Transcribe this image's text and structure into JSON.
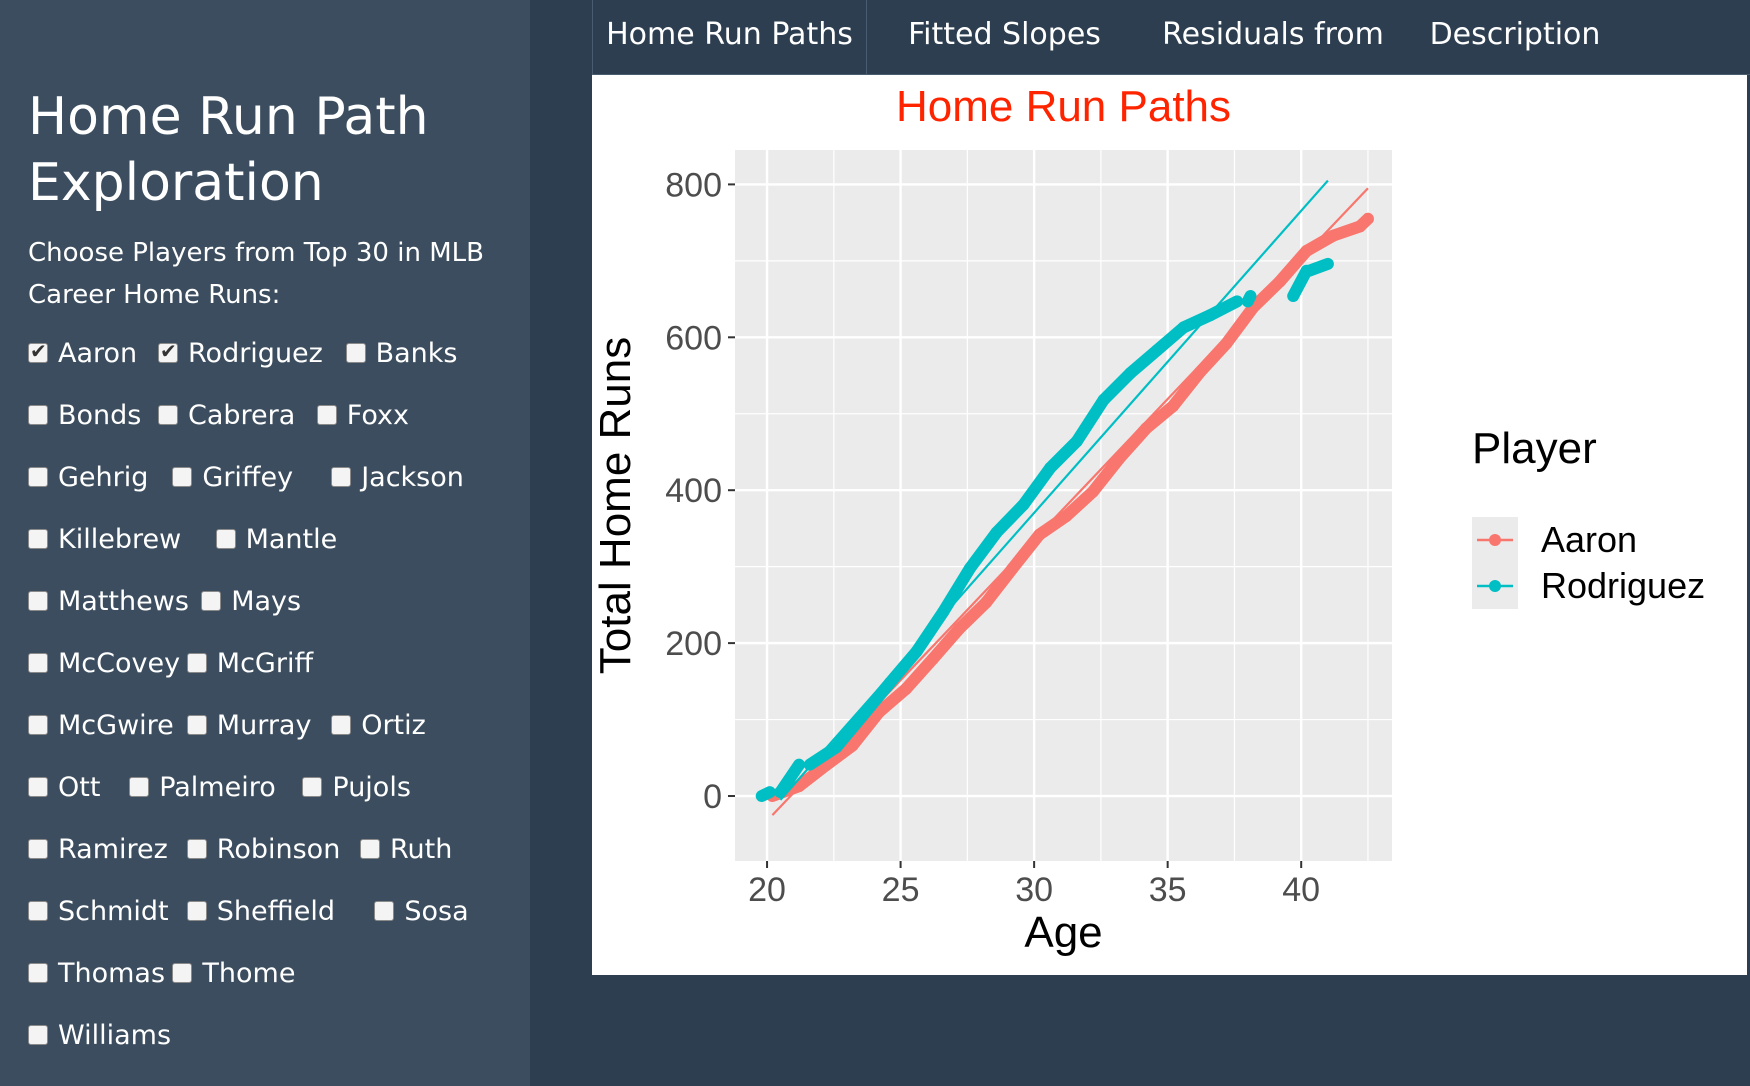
{
  "sidebar": {
    "title": "Home Run Path Exploration",
    "instructions": "Choose Players from Top 30 in MLB Career Home Runs:",
    "players": [
      {
        "label": "Aaron",
        "checked": true
      },
      {
        "label": "Rodriguez",
        "checked": true
      },
      {
        "label": "Banks",
        "checked": false
      },
      {
        "label": "Bonds",
        "checked": false
      },
      {
        "label": "Cabrera",
        "checked": false
      },
      {
        "label": "Foxx",
        "checked": false
      },
      {
        "label": "Gehrig",
        "checked": false
      },
      {
        "label": "Griffey",
        "checked": false
      },
      {
        "label": "Jackson",
        "checked": false
      },
      {
        "label": "Killebrew",
        "checked": false
      },
      {
        "label": "Mantle",
        "checked": false
      },
      {
        "label": "Matthews",
        "checked": false
      },
      {
        "label": "Mays",
        "checked": false
      },
      {
        "label": "McCovey",
        "checked": false
      },
      {
        "label": "McGriff",
        "checked": false
      },
      {
        "label": "McGwire",
        "checked": false
      },
      {
        "label": "Murray",
        "checked": false
      },
      {
        "label": "Ortiz",
        "checked": false
      },
      {
        "label": "Ott",
        "checked": false
      },
      {
        "label": "Palmeiro",
        "checked": false
      },
      {
        "label": "Pujols",
        "checked": false
      },
      {
        "label": "Ramirez",
        "checked": false
      },
      {
        "label": "Robinson",
        "checked": false
      },
      {
        "label": "Ruth",
        "checked": false
      },
      {
        "label": "Schmidt",
        "checked": false
      },
      {
        "label": "Sheffield",
        "checked": false
      },
      {
        "label": "Sosa",
        "checked": false
      },
      {
        "label": "Thomas",
        "checked": false
      },
      {
        "label": "Thome",
        "checked": false
      },
      {
        "label": "Williams",
        "checked": false
      }
    ]
  },
  "tabs": [
    {
      "label": "Home Run Paths",
      "active": true
    },
    {
      "label": "Fitted Slopes",
      "active": false
    },
    {
      "label": "Residuals from Fit",
      "active": false
    },
    {
      "label": "Description",
      "active": false
    }
  ],
  "colors": {
    "Aaron": "#F8766D",
    "Rodriguez": "#00BFC4",
    "title": "#FF2400",
    "panel_bg": "#EBEBEB",
    "sidebar_bg": "#3b4d5e",
    "page_bg": "#2c3e50"
  },
  "chart_data": {
    "type": "scatter",
    "title": "Home Run Paths",
    "xlabel": "Age",
    "ylabel": "Total Home Runs",
    "xlim": [
      18.8,
      43.4
    ],
    "ylim": [
      -85,
      845
    ],
    "xticks": [
      20,
      25,
      30,
      35,
      40
    ],
    "yticks": [
      0,
      200,
      400,
      600,
      800
    ],
    "legend": {
      "title": "Player",
      "position": "right",
      "entries": [
        "Aaron",
        "Rodriguez"
      ]
    },
    "grid": true,
    "series": [
      {
        "name": "Aaron",
        "fit_line": {
          "x": [
            20.2,
            42.5
          ],
          "y": [
            -25,
            795
          ]
        },
        "seasons": [
          {
            "x0": 20.2,
            "x1": 21.2,
            "y0": 0,
            "y1": 13
          },
          {
            "x0": 21.2,
            "x1": 22.2,
            "y0": 13,
            "y1": 40
          },
          {
            "x0": 22.2,
            "x1": 23.2,
            "y0": 40,
            "y1": 66
          },
          {
            "x0": 23.2,
            "x1": 24.2,
            "y0": 66,
            "y1": 110
          },
          {
            "x0": 24.2,
            "x1": 25.2,
            "y0": 110,
            "y1": 140
          },
          {
            "x0": 25.2,
            "x1": 26.2,
            "y0": 140,
            "y1": 179
          },
          {
            "x0": 26.2,
            "x1": 27.2,
            "y0": 179,
            "y1": 219
          },
          {
            "x0": 27.2,
            "x1": 28.2,
            "y0": 219,
            "y1": 253
          },
          {
            "x0": 28.2,
            "x1": 29.2,
            "y0": 253,
            "y1": 298
          },
          {
            "x0": 29.2,
            "x1": 30.2,
            "y0": 298,
            "y1": 342
          },
          {
            "x0": 30.2,
            "x1": 31.2,
            "y0": 342,
            "y1": 366
          },
          {
            "x0": 31.2,
            "x1": 32.2,
            "y0": 366,
            "y1": 398
          },
          {
            "x0": 32.2,
            "x1": 33.2,
            "y0": 398,
            "y1": 442
          },
          {
            "x0": 33.2,
            "x1": 34.2,
            "y0": 442,
            "y1": 481
          },
          {
            "x0": 34.2,
            "x1": 35.2,
            "y0": 481,
            "y1": 510
          },
          {
            "x0": 35.2,
            "x1": 36.2,
            "y0": 510,
            "y1": 554
          },
          {
            "x0": 36.2,
            "x1": 37.2,
            "y0": 554,
            "y1": 592
          },
          {
            "x0": 37.2,
            "x1": 38.2,
            "y0": 592,
            "y1": 639
          },
          {
            "x0": 38.2,
            "x1": 39.2,
            "y0": 639,
            "y1": 673
          },
          {
            "x0": 39.2,
            "x1": 40.2,
            "y0": 673,
            "y1": 713
          },
          {
            "x0": 40.2,
            "x1": 41.2,
            "y0": 713,
            "y1": 733
          },
          {
            "x0": 41.2,
            "x1": 42.2,
            "y0": 733,
            "y1": 745
          },
          {
            "x0": 42.2,
            "x1": 42.5,
            "y0": 745,
            "y1": 755
          }
        ]
      },
      {
        "name": "Rodriguez",
        "fit_line": {
          "x": [
            20.5,
            41.0
          ],
          "y": [
            -5,
            805
          ]
        },
        "seasons": [
          {
            "x0": 19.8,
            "x1": 20.1,
            "y0": 0,
            "y1": 5
          },
          {
            "x0": 20.5,
            "x1": 21.2,
            "y0": 5,
            "y1": 41
          },
          {
            "x0": 21.6,
            "x1": 22.6,
            "y0": 41,
            "y1": 64
          },
          {
            "x0": 22.6,
            "x1": 23.6,
            "y0": 64,
            "y1": 106
          },
          {
            "x0": 23.6,
            "x1": 24.6,
            "y0": 106,
            "y1": 148
          },
          {
            "x0": 24.6,
            "x1": 25.6,
            "y0": 148,
            "y1": 189
          },
          {
            "x0": 25.6,
            "x1": 26.6,
            "y0": 189,
            "y1": 241
          },
          {
            "x0": 26.6,
            "x1": 27.6,
            "y0": 241,
            "y1": 298
          },
          {
            "x0": 27.6,
            "x1": 28.6,
            "y0": 298,
            "y1": 345
          },
          {
            "x0": 28.6,
            "x1": 29.6,
            "y0": 345,
            "y1": 381
          },
          {
            "x0": 29.6,
            "x1": 30.6,
            "y0": 381,
            "y1": 429
          },
          {
            "x0": 30.6,
            "x1": 31.6,
            "y0": 429,
            "y1": 464
          },
          {
            "x0": 31.6,
            "x1": 32.6,
            "y0": 464,
            "y1": 518
          },
          {
            "x0": 32.6,
            "x1": 33.6,
            "y0": 518,
            "y1": 553
          },
          {
            "x0": 33.6,
            "x1": 34.6,
            "y0": 553,
            "y1": 583
          },
          {
            "x0": 34.6,
            "x1": 35.6,
            "y0": 583,
            "y1": 613
          },
          {
            "x0": 35.6,
            "x1": 36.6,
            "y0": 613,
            "y1": 629
          },
          {
            "x0": 36.6,
            "x1": 37.6,
            "y0": 629,
            "y1": 647
          },
          {
            "x0": 38.0,
            "x1": 38.1,
            "y0": 647,
            "y1": 654
          },
          {
            "x0": 39.7,
            "x1": 40.2,
            "y0": 654,
            "y1": 687
          },
          {
            "x0": 40.3,
            "x1": 41.0,
            "y0": 687,
            "y1": 696
          }
        ]
      }
    ]
  }
}
